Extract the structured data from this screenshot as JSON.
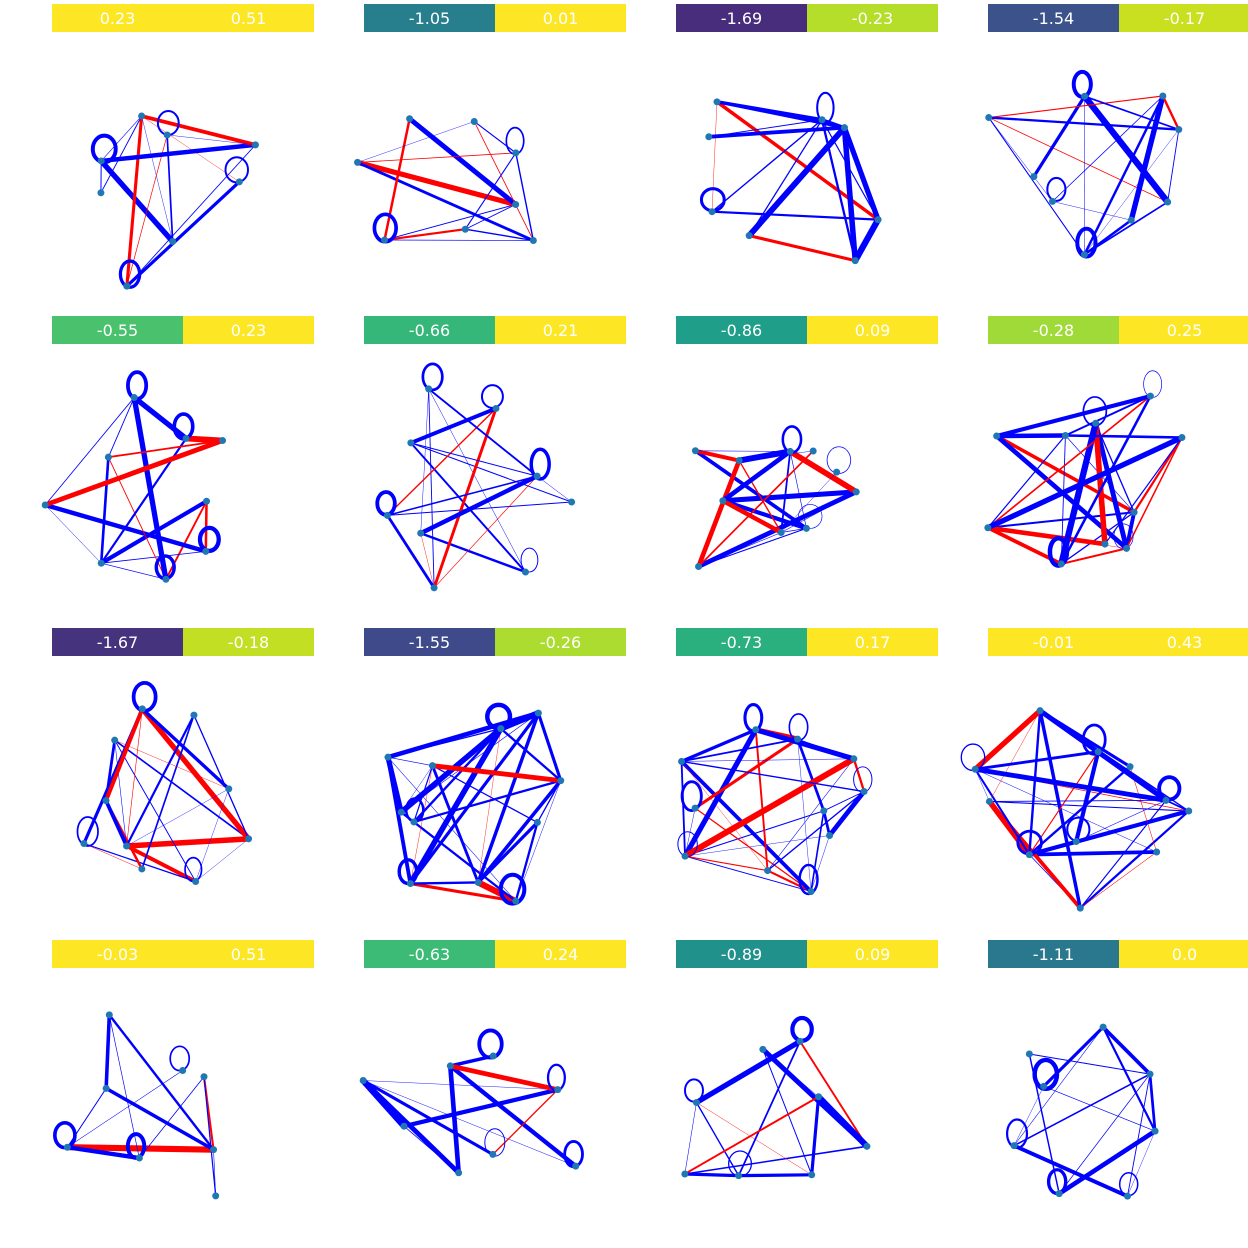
{
  "edge_colors": {
    "positive": "#0000ff",
    "negative": "#ff0000",
    "node": "#1f77b4"
  },
  "panels": [
    {
      "labels": [
        "0.23",
        "0.51"
      ],
      "colors": [
        "#fde725",
        "#fde725"
      ],
      "seed": 1
    },
    {
      "labels": [
        "-1.05",
        "0.01"
      ],
      "colors": [
        "#277f8e",
        "#fde725"
      ],
      "seed": 2
    },
    {
      "labels": [
        "-1.69",
        "-0.23"
      ],
      "colors": [
        "#472d7b",
        "#b5de2b"
      ],
      "seed": 3
    },
    {
      "labels": [
        "-1.54",
        "-0.17"
      ],
      "colors": [
        "#3b528b",
        "#c8e020"
      ],
      "seed": 4
    },
    {
      "labels": [
        "-0.55",
        "0.23"
      ],
      "colors": [
        "#4ac16d",
        "#fde725"
      ],
      "seed": 5
    },
    {
      "labels": [
        "-0.66",
        "0.21"
      ],
      "colors": [
        "#35b779",
        "#fde725"
      ],
      "seed": 6
    },
    {
      "labels": [
        "-0.86",
        "0.09"
      ],
      "colors": [
        "#1f9e89",
        "#fde725"
      ],
      "seed": 7
    },
    {
      "labels": [
        "-0.28",
        "0.25"
      ],
      "colors": [
        "#a0da39",
        "#fde725"
      ],
      "seed": 8
    },
    {
      "labels": [
        "-1.67",
        "-0.18"
      ],
      "colors": [
        "#46337e",
        "#c2df23"
      ],
      "seed": 9
    },
    {
      "labels": [
        "-1.55",
        "-0.26"
      ],
      "colors": [
        "#3e4a89",
        "#addc30"
      ],
      "seed": 10
    },
    {
      "labels": [
        "-0.73",
        "0.17"
      ],
      "colors": [
        "#2ab07f",
        "#fde725"
      ],
      "seed": 11
    },
    {
      "labels": [
        "-0.01",
        "0.43"
      ],
      "colors": [
        "#fde725",
        "#fde725"
      ],
      "seed": 12
    },
    {
      "labels": [
        "-0.03",
        "0.51"
      ],
      "colors": [
        "#fde725",
        "#fde725"
      ],
      "seed": 13
    },
    {
      "labels": [
        "-0.63",
        "0.24"
      ],
      "colors": [
        "#3bbb75",
        "#fde725"
      ],
      "seed": 14
    },
    {
      "labels": [
        "-0.89",
        "0.09"
      ],
      "colors": [
        "#21918c",
        "#fde725"
      ],
      "seed": 15
    },
    {
      "labels": [
        "-1.11",
        "0.0"
      ],
      "colors": [
        "#2a788e",
        "#fde725"
      ],
      "seed": 16
    }
  ]
}
